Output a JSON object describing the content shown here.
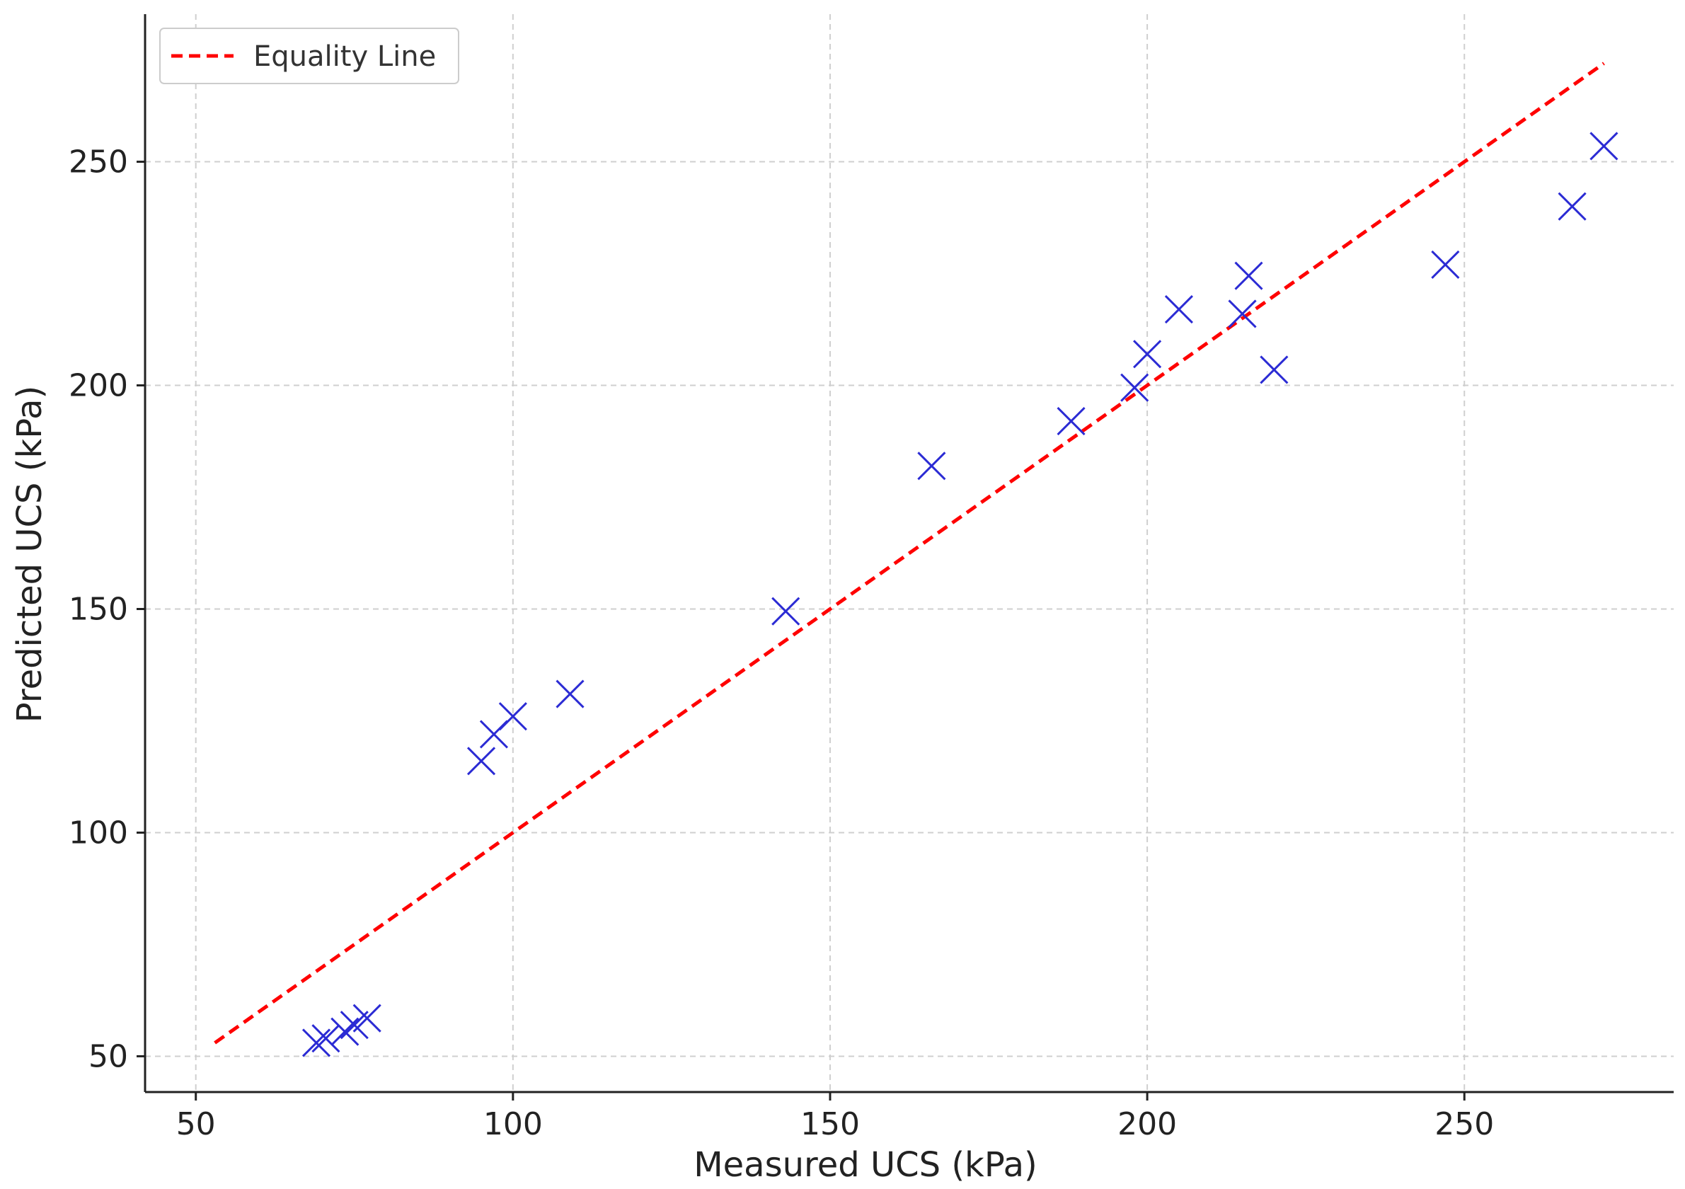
{
  "chart_data": {
    "type": "scatter",
    "xlabel": "Measured UCS (kPa)",
    "ylabel": "Predicted UCS (kPa)",
    "xlim": [
      42,
      283
    ],
    "ylim": [
      42,
      283
    ],
    "x_ticks": [
      50,
      100,
      150,
      200,
      250
    ],
    "y_ticks": [
      50,
      100,
      150,
      200,
      250
    ],
    "x_tick_labels": [
      "50",
      "100",
      "150",
      "200",
      "250"
    ],
    "y_tick_labels": [
      "50",
      "100",
      "150",
      "200",
      "250"
    ],
    "grid": true,
    "legend": {
      "position": "top-left",
      "entries": [
        "Equality Line"
      ]
    },
    "series": [
      {
        "kind": "scatter",
        "marker": "x",
        "color": "#2b2bd4",
        "points": [
          [
            69,
            53
          ],
          [
            70.5,
            54
          ],
          [
            73.5,
            55.5
          ],
          [
            75,
            57
          ],
          [
            77,
            58.5
          ],
          [
            95,
            116
          ],
          [
            97,
            122
          ],
          [
            100,
            126
          ],
          [
            109,
            131
          ],
          [
            143,
            149.5
          ],
          [
            166,
            182
          ],
          [
            188,
            192
          ],
          [
            198,
            199.5
          ],
          [
            200,
            207
          ],
          [
            205,
            217
          ],
          [
            215,
            216
          ],
          [
            216,
            224.5
          ],
          [
            220,
            203.5
          ],
          [
            247,
            227
          ],
          [
            267,
            240
          ],
          [
            272,
            253.5
          ]
        ]
      },
      {
        "name": "Equality Line",
        "kind": "line",
        "style": "dashed",
        "color": "#ff0000",
        "points": [
          [
            53,
            53
          ],
          [
            272,
            272
          ]
        ]
      }
    ]
  }
}
